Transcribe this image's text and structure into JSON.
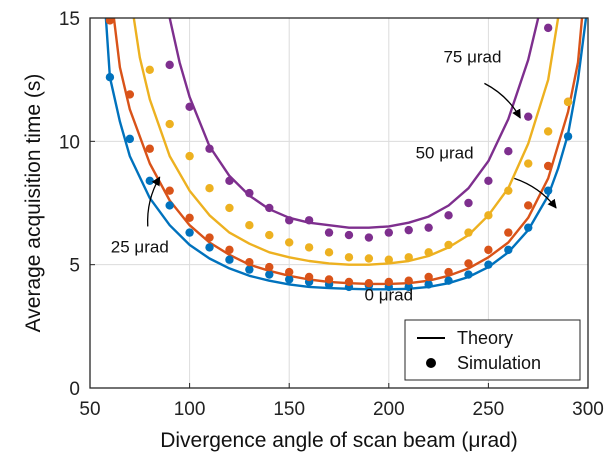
{
  "chart_data": {
    "type": "line",
    "xlabel": "Divergence angle of scan beam (μrad)",
    "ylabel": "Average acquisition time (s)",
    "xlim": [
      50,
      300
    ],
    "ylim": [
      0,
      15
    ],
    "xticks": [
      50,
      100,
      150,
      200,
      250,
      300
    ],
    "yticks": [
      0,
      5,
      10,
      15
    ],
    "grid": true,
    "legend": {
      "placement": "bottom-right",
      "entries": [
        {
          "label": "Theory",
          "marker": "line"
        },
        {
          "label": "Simulation",
          "marker": "dot"
        }
      ]
    },
    "series": [
      {
        "name": "0 μrad",
        "color": "#0072BD",
        "label_at": [
          200,
          3.55
        ],
        "theory": [
          [
            58,
            15.0
          ],
          [
            60,
            12.6
          ],
          [
            65,
            10.8
          ],
          [
            70,
            9.4
          ],
          [
            80,
            7.7
          ],
          [
            90,
            6.6
          ],
          [
            100,
            5.8
          ],
          [
            110,
            5.25
          ],
          [
            120,
            4.85
          ],
          [
            130,
            4.55
          ],
          [
            140,
            4.35
          ],
          [
            150,
            4.2
          ],
          [
            160,
            4.1
          ],
          [
            170,
            4.05
          ],
          [
            180,
            4.02
          ],
          [
            190,
            4.0
          ],
          [
            200,
            4.0
          ],
          [
            210,
            4.02
          ],
          [
            220,
            4.1
          ],
          [
            230,
            4.25
          ],
          [
            240,
            4.5
          ],
          [
            250,
            4.9
          ],
          [
            260,
            5.5
          ],
          [
            270,
            6.4
          ],
          [
            280,
            7.8
          ],
          [
            285,
            8.9
          ],
          [
            290,
            10.3
          ],
          [
            295,
            12.5
          ],
          [
            299,
            15.0
          ]
        ],
        "sim": [
          [
            60,
            12.6
          ],
          [
            70,
            10.1
          ],
          [
            80,
            8.4
          ],
          [
            90,
            7.4
          ],
          [
            100,
            6.3
          ],
          [
            110,
            5.7
          ],
          [
            120,
            5.2
          ],
          [
            130,
            4.8
          ],
          [
            140,
            4.6
          ],
          [
            150,
            4.4
          ],
          [
            160,
            4.3
          ],
          [
            170,
            4.2
          ],
          [
            180,
            4.1
          ],
          [
            190,
            4.15
          ],
          [
            200,
            4.1
          ],
          [
            210,
            4.1
          ],
          [
            220,
            4.2
          ],
          [
            230,
            4.35
          ],
          [
            240,
            4.6
          ],
          [
            250,
            5.0
          ],
          [
            260,
            5.6
          ],
          [
            270,
            6.5
          ],
          [
            280,
            8.0
          ],
          [
            290,
            10.2
          ]
        ]
      },
      {
        "name": "25 μrad",
        "color": "#D95319",
        "label_at": [
          75,
          5.5
        ],
        "annotation_arrow": [
          [
            79,
            6.55
          ],
          [
            85,
            8.55
          ]
        ],
        "theory": [
          [
            62,
            15.0
          ],
          [
            65,
            13.0
          ],
          [
            70,
            11.3
          ],
          [
            80,
            9.1
          ],
          [
            90,
            7.6
          ],
          [
            100,
            6.6
          ],
          [
            110,
            5.9
          ],
          [
            120,
            5.4
          ],
          [
            130,
            5.0
          ],
          [
            140,
            4.75
          ],
          [
            150,
            4.55
          ],
          [
            160,
            4.4
          ],
          [
            170,
            4.3
          ],
          [
            180,
            4.25
          ],
          [
            190,
            4.22
          ],
          [
            200,
            4.22
          ],
          [
            210,
            4.25
          ],
          [
            220,
            4.35
          ],
          [
            230,
            4.55
          ],
          [
            240,
            4.85
          ],
          [
            250,
            5.3
          ],
          [
            260,
            5.9
          ],
          [
            270,
            6.9
          ],
          [
            280,
            8.5
          ],
          [
            290,
            11.2
          ],
          [
            295,
            13.2
          ],
          [
            297,
            15.0
          ]
        ],
        "sim": [
          [
            60,
            14.9
          ],
          [
            70,
            11.9
          ],
          [
            80,
            9.7
          ],
          [
            90,
            8.0
          ],
          [
            100,
            6.9
          ],
          [
            110,
            6.1
          ],
          [
            120,
            5.6
          ],
          [
            130,
            5.1
          ],
          [
            140,
            4.9
          ],
          [
            150,
            4.7
          ],
          [
            160,
            4.5
          ],
          [
            170,
            4.4
          ],
          [
            180,
            4.3
          ],
          [
            190,
            4.25
          ],
          [
            200,
            4.3
          ],
          [
            210,
            4.35
          ],
          [
            220,
            4.5
          ],
          [
            230,
            4.7
          ],
          [
            240,
            5.05
          ],
          [
            250,
            5.6
          ],
          [
            260,
            6.3
          ],
          [
            270,
            7.4
          ],
          [
            280,
            9.0
          ],
          [
            290,
            11.6
          ]
        ]
      },
      {
        "name": "50 μrad",
        "color": "#EDB120",
        "label_at": [
          228,
          9.3
        ],
        "annotation_arrow": [
          [
            263,
            8.5
          ],
          [
            284,
            7.3
          ]
        ],
        "theory": [
          [
            72,
            15.0
          ],
          [
            75,
            13.4
          ],
          [
            80,
            11.7
          ],
          [
            90,
            9.4
          ],
          [
            100,
            8.0
          ],
          [
            110,
            7.0
          ],
          [
            120,
            6.3
          ],
          [
            130,
            5.85
          ],
          [
            140,
            5.5
          ],
          [
            150,
            5.3
          ],
          [
            160,
            5.15
          ],
          [
            170,
            5.05
          ],
          [
            180,
            5.0
          ],
          [
            190,
            5.0
          ],
          [
            200,
            5.05
          ],
          [
            210,
            5.15
          ],
          [
            220,
            5.35
          ],
          [
            230,
            5.7
          ],
          [
            240,
            6.2
          ],
          [
            250,
            7.0
          ],
          [
            260,
            8.1
          ],
          [
            270,
            9.9
          ],
          [
            280,
            12.5
          ],
          [
            285,
            15.0
          ]
        ],
        "sim": [
          [
            80,
            12.9
          ],
          [
            90,
            10.7
          ],
          [
            100,
            9.4
          ],
          [
            110,
            8.1
          ],
          [
            120,
            7.3
          ],
          [
            130,
            6.6
          ],
          [
            140,
            6.2
          ],
          [
            150,
            5.9
          ],
          [
            160,
            5.7
          ],
          [
            170,
            5.5
          ],
          [
            180,
            5.3
          ],
          [
            190,
            5.25
          ],
          [
            200,
            5.2
          ],
          [
            210,
            5.3
          ],
          [
            220,
            5.5
          ],
          [
            230,
            5.8
          ],
          [
            240,
            6.3
          ],
          [
            250,
            7.0
          ],
          [
            260,
            8.0
          ],
          [
            270,
            9.1
          ],
          [
            280,
            10.4
          ],
          [
            290,
            11.6
          ]
        ]
      },
      {
        "name": "75 μrad",
        "color": "#7E2F8E",
        "label_at": [
          242,
          13.2
        ],
        "annotation_arrow": [
          [
            248,
            12.35
          ],
          [
            266,
            10.95
          ]
        ],
        "theory": [
          [
            90,
            15.0
          ],
          [
            95,
            13.2
          ],
          [
            100,
            11.8
          ],
          [
            110,
            9.8
          ],
          [
            120,
            8.6
          ],
          [
            130,
            7.8
          ],
          [
            140,
            7.25
          ],
          [
            150,
            6.9
          ],
          [
            160,
            6.7
          ],
          [
            170,
            6.6
          ],
          [
            180,
            6.5
          ],
          [
            190,
            6.5
          ],
          [
            200,
            6.55
          ],
          [
            210,
            6.7
          ],
          [
            220,
            6.95
          ],
          [
            230,
            7.4
          ],
          [
            240,
            8.1
          ],
          [
            250,
            9.2
          ],
          [
            260,
            10.9
          ],
          [
            270,
            13.3
          ],
          [
            275,
            15.0
          ]
        ],
        "sim": [
          [
            90,
            13.1
          ],
          [
            100,
            11.4
          ],
          [
            110,
            9.7
          ],
          [
            120,
            8.4
          ],
          [
            130,
            7.9
          ],
          [
            140,
            7.3
          ],
          [
            150,
            6.8
          ],
          [
            160,
            6.8
          ],
          [
            170,
            6.3
          ],
          [
            180,
            6.2
          ],
          [
            190,
            6.1
          ],
          [
            200,
            6.3
          ],
          [
            210,
            6.4
          ],
          [
            220,
            6.5
          ],
          [
            230,
            7.0
          ],
          [
            240,
            7.5
          ],
          [
            250,
            8.4
          ],
          [
            260,
            9.6
          ],
          [
            270,
            11.0
          ],
          [
            280,
            14.6
          ]
        ]
      }
    ]
  }
}
